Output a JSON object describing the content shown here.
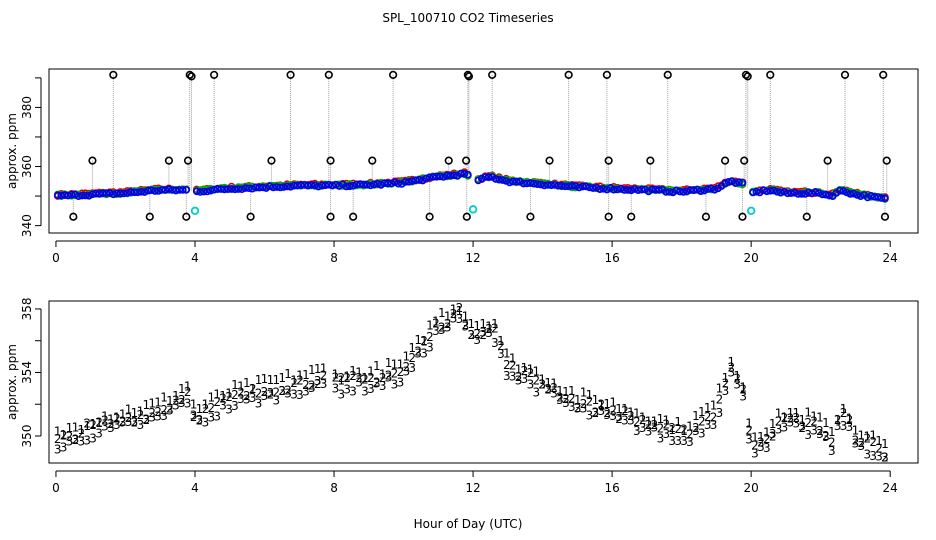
{
  "title": "SPL_100710  CO2 Timeseries",
  "x_label": "Hour of Day (UTC)",
  "colors": {
    "series1": "#e00000",
    "series2": "#00b000",
    "series3": "#0000ee",
    "cal": "#00cccc",
    "flag": "#000000",
    "drop": "#a0a0a0"
  },
  "chart_data": [
    {
      "id": "top",
      "type": "scatter",
      "ylabel": "approx. ppm",
      "xlim": [
        -0.2,
        24.8
      ],
      "ylim": [
        337.5,
        393
      ],
      "xticks": [
        0,
        4,
        8,
        12,
        16,
        20,
        24
      ],
      "yticks": [
        340,
        360,
        380
      ],
      "yticks_minor": [
        340,
        350,
        360,
        370,
        380,
        390
      ],
      "baseline": [
        [
          0,
          350
        ],
        [
          1,
          350.5
        ],
        [
          2,
          351
        ],
        [
          3,
          352
        ],
        [
          3.8,
          352
        ],
        [
          4,
          351.5
        ],
        [
          5,
          352.5
        ],
        [
          6,
          353
        ],
        [
          7,
          353.5
        ],
        [
          8,
          353.5
        ],
        [
          9,
          353.8
        ],
        [
          10,
          354.5
        ],
        [
          11,
          356.5
        ],
        [
          11.8,
          357.5
        ],
        [
          12,
          355
        ],
        [
          12.5,
          356.5
        ],
        [
          13,
          355
        ],
        [
          14,
          354
        ],
        [
          15,
          353
        ],
        [
          16,
          352.5
        ],
        [
          17,
          352
        ],
        [
          18,
          351.5
        ],
        [
          19,
          352.5
        ],
        [
          19.4,
          355
        ],
        [
          19.8,
          354
        ],
        [
          20,
          351
        ],
        [
          20.5,
          352
        ],
        [
          21,
          351
        ],
        [
          22,
          351
        ],
        [
          22.3,
          350
        ],
        [
          22.6,
          352
        ],
        [
          23,
          350.5
        ],
        [
          23.9,
          349
        ]
      ],
      "flag_points": [
        [
          0.5,
          343
        ],
        [
          1.05,
          362
        ],
        [
          1.65,
          391
        ],
        [
          2.7,
          343
        ],
        [
          3.25,
          362
        ],
        [
          3.75,
          343
        ],
        [
          3.8,
          362
        ],
        [
          3.85,
          391
        ],
        [
          3.9,
          390.5
        ],
        [
          4.55,
          391
        ],
        [
          5.6,
          343
        ],
        [
          6.2,
          362
        ],
        [
          6.75,
          391
        ],
        [
          7.85,
          391
        ],
        [
          7.9,
          343
        ],
        [
          7.9,
          362
        ],
        [
          8.55,
          343
        ],
        [
          9.1,
          362
        ],
        [
          9.7,
          391
        ],
        [
          10.75,
          343
        ],
        [
          11.3,
          362
        ],
        [
          11.8,
          362
        ],
        [
          11.82,
          343
        ],
        [
          11.85,
          391
        ],
        [
          11.88,
          390.5
        ],
        [
          12.55,
          391
        ],
        [
          13.65,
          343
        ],
        [
          14.2,
          362
        ],
        [
          14.75,
          391
        ],
        [
          15.85,
          391
        ],
        [
          15.9,
          343
        ],
        [
          15.9,
          362
        ],
        [
          16.55,
          343
        ],
        [
          17.1,
          362
        ],
        [
          17.6,
          391
        ],
        [
          18.7,
          343
        ],
        [
          19.25,
          362
        ],
        [
          19.75,
          343
        ],
        [
          19.8,
          362
        ],
        [
          19.85,
          391
        ],
        [
          19.9,
          390.5
        ],
        [
          20.55,
          391
        ],
        [
          21.6,
          343
        ],
        [
          22.2,
          362
        ],
        [
          22.7,
          391
        ],
        [
          23.8,
          391
        ],
        [
          23.85,
          343
        ],
        [
          23.9,
          362
        ]
      ],
      "cal_points": [
        [
          4,
          345
        ],
        [
          12,
          345.5
        ],
        [
          20,
          345
        ]
      ]
    },
    {
      "id": "bottom",
      "type": "scatter",
      "ylabel": "approx. ppm",
      "xlim": [
        -0.2,
        24.8
      ],
      "ylim": [
        348.3,
        358.5
      ],
      "xticks": [
        0,
        4,
        8,
        12,
        16,
        20,
        24
      ],
      "yticks": [
        350,
        354,
        358
      ],
      "yticks_minor": [
        350,
        352,
        354,
        356,
        358
      ],
      "series": [
        {
          "name": "1",
          "symbol": "1",
          "offset": 0.9,
          "knots": [
            [
              0,
              350
            ],
            [
              1,
              351
            ],
            [
              3,
              352
            ],
            [
              3.8,
              353.2
            ],
            [
              4,
              351.6
            ],
            [
              5,
              352.8
            ],
            [
              6,
              353.3
            ],
            [
              7,
              353.8
            ],
            [
              7.9,
              354.2
            ],
            [
              8,
              353.8
            ],
            [
              9,
              354
            ],
            [
              10,
              354.5
            ],
            [
              11,
              357.5
            ],
            [
              11.6,
              358.2
            ],
            [
              12,
              357
            ],
            [
              12.6,
              357.3
            ],
            [
              13,
              354.8
            ],
            [
              14,
              353.8
            ],
            [
              15,
              352.5
            ],
            [
              16,
              352
            ],
            [
              17,
              351.3
            ],
            [
              18,
              350.5
            ],
            [
              19,
              352
            ],
            [
              19.4,
              355
            ],
            [
              19.8,
              353
            ],
            [
              20,
              350
            ],
            [
              20.5,
              350.5
            ],
            [
              21,
              351.5
            ],
            [
              22,
              351
            ],
            [
              22.3,
              350
            ],
            [
              22.6,
              352
            ],
            [
              23,
              350.5
            ],
            [
              23.9,
              349.3
            ]
          ]
        },
        {
          "name": "2",
          "symbol": "2",
          "offset": 0.45,
          "knots": [
            [
              0,
              350
            ],
            [
              1,
              351
            ],
            [
              3,
              352
            ],
            [
              3.8,
              353.2
            ],
            [
              4,
              351.6
            ],
            [
              5,
              352.8
            ],
            [
              6,
              353.3
            ],
            [
              7,
              353.8
            ],
            [
              7.9,
              354.2
            ],
            [
              8,
              353.8
            ],
            [
              9,
              354
            ],
            [
              10,
              354.5
            ],
            [
              11,
              357.5
            ],
            [
              11.6,
              358.2
            ],
            [
              12,
              357
            ],
            [
              12.6,
              357.3
            ],
            [
              13,
              354.8
            ],
            [
              14,
              353.8
            ],
            [
              15,
              352.5
            ],
            [
              16,
              352
            ],
            [
              17,
              351.3
            ],
            [
              18,
              350.5
            ],
            [
              19,
              352
            ],
            [
              19.4,
              355
            ],
            [
              19.8,
              353
            ],
            [
              20,
              350
            ],
            [
              20.5,
              350.5
            ],
            [
              21,
              351.5
            ],
            [
              22,
              351
            ],
            [
              22.3,
              350
            ],
            [
              22.6,
              352
            ],
            [
              23,
              350.5
            ],
            [
              23.9,
              349.3
            ]
          ]
        },
        {
          "name": "3",
          "symbol": "3",
          "offset": 0,
          "knots": [
            [
              0,
              350
            ],
            [
              1,
              351
            ],
            [
              3,
              352
            ],
            [
              3.8,
              353.2
            ],
            [
              4,
              351.6
            ],
            [
              5,
              352.8
            ],
            [
              6,
              353.3
            ],
            [
              7,
              353.8
            ],
            [
              7.9,
              354.2
            ],
            [
              8,
              353.8
            ],
            [
              9,
              354
            ],
            [
              10,
              354.5
            ],
            [
              11,
              357.5
            ],
            [
              11.6,
              358.2
            ],
            [
              12,
              357
            ],
            [
              12.6,
              357.3
            ],
            [
              13,
              354.8
            ],
            [
              14,
              353.8
            ],
            [
              15,
              352.5
            ],
            [
              16,
              352
            ],
            [
              17,
              351.3
            ],
            [
              18,
              350.5
            ],
            [
              19,
              352
            ],
            [
              19.4,
              355
            ],
            [
              19.8,
              353
            ],
            [
              20,
              350
            ],
            [
              20.5,
              350.5
            ],
            [
              21,
              351.5
            ],
            [
              22,
              351
            ],
            [
              22.3,
              350
            ],
            [
              22.6,
              352
            ],
            [
              23,
              350.5
            ],
            [
              23.9,
              349.3
            ]
          ]
        }
      ]
    }
  ]
}
